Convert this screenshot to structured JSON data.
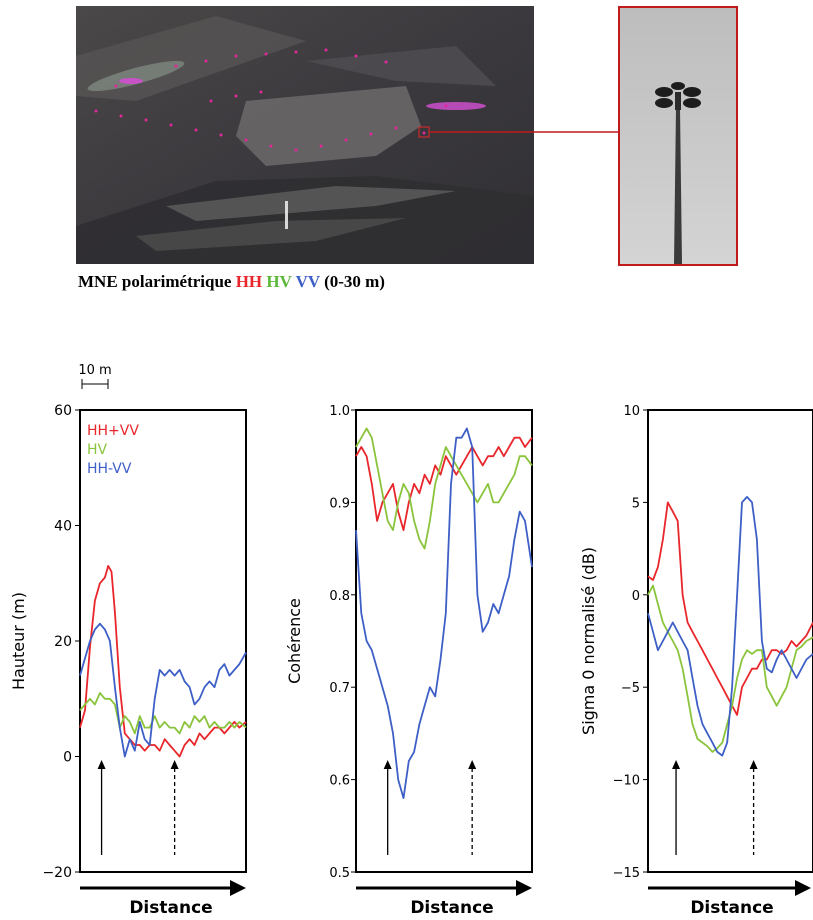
{
  "caption": {
    "prefix": "MNE polarimétrique",
    "hh": "HH",
    "hv": "HV",
    "vv": "VV",
    "suffix": "(0-30 m)"
  },
  "colors": {
    "red": "#e8262b",
    "green": "#8ac43c",
    "blue": "#3e5fc6",
    "marker": "#e0289a"
  },
  "scale_bar": "10 m",
  "xaxis_label": "Distance",
  "chart_data": [
    {
      "type": "line",
      "ylabel": "Hauteur (m)",
      "ylim": [
        -20,
        60
      ],
      "yticks": [
        -20,
        0,
        20,
        40,
        60
      ],
      "ytick_labels": [
        "−20",
        "0",
        "20",
        "40",
        "60"
      ],
      "legend": [
        "HH+VV",
        "HV",
        "HH-VV"
      ],
      "legend_position": "top-left",
      "x_range": [
        0,
        100
      ],
      "arrows": [
        {
          "x": 13,
          "style": "solid"
        },
        {
          "x": 57,
          "style": "dashed"
        }
      ],
      "series": [
        {
          "name": "HH+VV",
          "color": "#e8262b",
          "x": [
            0,
            3,
            6,
            9,
            12,
            15,
            17,
            19,
            21,
            24,
            27,
            30,
            33,
            36,
            39,
            42,
            45,
            48,
            51,
            54,
            57,
            60,
            63,
            66,
            69,
            72,
            75,
            78,
            81,
            84,
            87,
            90,
            93,
            96,
            100
          ],
          "y": [
            5,
            8,
            19,
            27,
            30,
            31,
            33,
            32,
            25,
            12,
            4,
            3,
            2,
            2,
            1,
            2,
            2,
            1,
            3,
            2,
            1,
            0,
            2,
            3,
            2,
            4,
            3,
            4,
            5,
            5,
            4,
            5,
            6,
            5,
            6
          ]
        },
        {
          "name": "HV",
          "color": "#8ac43c",
          "x": [
            0,
            3,
            6,
            9,
            12,
            15,
            18,
            21,
            24,
            27,
            30,
            33,
            36,
            39,
            42,
            45,
            48,
            51,
            54,
            57,
            60,
            63,
            66,
            69,
            72,
            75,
            78,
            81,
            84,
            87,
            90,
            93,
            96,
            100
          ],
          "y": [
            8,
            9,
            10,
            9,
            11,
            10,
            10,
            9,
            5,
            7,
            6,
            4,
            7,
            5,
            5,
            7,
            5,
            6,
            5,
            5,
            4,
            6,
            5,
            7,
            6,
            7,
            5,
            6,
            5,
            5,
            6,
            5,
            6,
            5
          ]
        },
        {
          "name": "HH-VV",
          "color": "#3e5fc6",
          "x": [
            0,
            3,
            6,
            9,
            12,
            15,
            18,
            21,
            24,
            27,
            30,
            33,
            36,
            39,
            42,
            45,
            48,
            51,
            54,
            57,
            60,
            63,
            66,
            69,
            72,
            75,
            78,
            81,
            84,
            87,
            90,
            93,
            96,
            100
          ],
          "y": [
            14,
            17,
            20,
            22,
            23,
            22,
            20,
            12,
            5,
            0,
            3,
            1,
            6,
            3,
            2,
            10,
            15,
            14,
            15,
            14,
            15,
            13,
            12,
            9,
            10,
            12,
            13,
            12,
            15,
            16,
            14,
            15,
            16,
            18
          ]
        }
      ]
    },
    {
      "type": "line",
      "ylabel": "Cohérence",
      "ylim": [
        0.5,
        1.0
      ],
      "yticks": [
        0.5,
        0.6,
        0.7,
        0.8,
        0.9,
        1.0
      ],
      "ytick_labels": [
        "0.5",
        "0.6",
        "0.7",
        "0.8",
        "0.9",
        "1.0"
      ],
      "x_range": [
        0,
        100
      ],
      "arrows": [
        {
          "x": 18,
          "style": "solid"
        },
        {
          "x": 66,
          "style": "dashed"
        }
      ],
      "series": [
        {
          "color": "#e8262b",
          "x": [
            0,
            3,
            6,
            9,
            12,
            15,
            18,
            21,
            24,
            27,
            30,
            33,
            36,
            39,
            42,
            45,
            48,
            51,
            54,
            57,
            60,
            63,
            66,
            69,
            72,
            75,
            78,
            81,
            84,
            87,
            90,
            93,
            96,
            100
          ],
          "y": [
            0.95,
            0.96,
            0.95,
            0.92,
            0.88,
            0.9,
            0.91,
            0.92,
            0.89,
            0.87,
            0.9,
            0.92,
            0.91,
            0.93,
            0.92,
            0.94,
            0.93,
            0.95,
            0.94,
            0.93,
            0.94,
            0.95,
            0.96,
            0.95,
            0.94,
            0.95,
            0.95,
            0.96,
            0.95,
            0.96,
            0.97,
            0.97,
            0.96,
            0.97
          ]
        },
        {
          "color": "#8ac43c",
          "x": [
            0,
            3,
            6,
            9,
            12,
            15,
            18,
            21,
            24,
            27,
            30,
            33,
            36,
            39,
            42,
            45,
            48,
            51,
            54,
            57,
            60,
            63,
            66,
            69,
            72,
            75,
            78,
            81,
            84,
            87,
            90,
            93,
            96,
            100
          ],
          "y": [
            0.96,
            0.97,
            0.98,
            0.97,
            0.94,
            0.91,
            0.88,
            0.87,
            0.9,
            0.92,
            0.91,
            0.88,
            0.86,
            0.85,
            0.88,
            0.92,
            0.94,
            0.96,
            0.95,
            0.94,
            0.93,
            0.92,
            0.91,
            0.9,
            0.91,
            0.92,
            0.9,
            0.9,
            0.91,
            0.92,
            0.93,
            0.95,
            0.95,
            0.94
          ]
        },
        {
          "color": "#3e5fc6",
          "x": [
            0,
            3,
            6,
            9,
            12,
            15,
            18,
            21,
            24,
            27,
            30,
            33,
            36,
            39,
            42,
            45,
            48,
            51,
            54,
            57,
            60,
            63,
            66,
            69,
            72,
            75,
            78,
            81,
            84,
            87,
            90,
            93,
            96,
            100
          ],
          "y": [
            0.87,
            0.78,
            0.75,
            0.74,
            0.72,
            0.7,
            0.68,
            0.65,
            0.6,
            0.58,
            0.62,
            0.63,
            0.66,
            0.68,
            0.7,
            0.69,
            0.73,
            0.78,
            0.92,
            0.97,
            0.97,
            0.98,
            0.96,
            0.8,
            0.76,
            0.77,
            0.79,
            0.78,
            0.8,
            0.82,
            0.86,
            0.89,
            0.88,
            0.83
          ]
        }
      ]
    },
    {
      "type": "line",
      "ylabel": "Sigma 0 normalisé (dB)",
      "ylim": [
        -15,
        10
      ],
      "yticks": [
        -15,
        -10,
        -5,
        0,
        5,
        10
      ],
      "ytick_labels": [
        "−15",
        "−10",
        "−5",
        "0",
        "5",
        "10"
      ],
      "x_range": [
        0,
        100
      ],
      "arrows": [
        {
          "x": 17,
          "style": "solid"
        },
        {
          "x": 64,
          "style": "dashed"
        }
      ],
      "series": [
        {
          "color": "#e8262b",
          "x": [
            0,
            3,
            6,
            9,
            12,
            15,
            18,
            21,
            24,
            27,
            30,
            33,
            36,
            39,
            42,
            45,
            48,
            51,
            54,
            57,
            60,
            63,
            66,
            69,
            72,
            75,
            78,
            81,
            84,
            87,
            90,
            93,
            96,
            100
          ],
          "y": [
            1,
            0.8,
            1.5,
            3,
            5,
            4.5,
            4,
            0,
            -1.5,
            -2,
            -2.5,
            -3,
            -3.5,
            -4,
            -4.5,
            -5,
            -5.5,
            -6,
            -6.5,
            -5,
            -4.5,
            -4,
            -4,
            -3.5,
            -3.5,
            -3,
            -3,
            -3.2,
            -3,
            -2.5,
            -2.8,
            -2.5,
            -2.2,
            -1.5
          ]
        },
        {
          "color": "#8ac43c",
          "x": [
            0,
            3,
            6,
            9,
            12,
            15,
            18,
            21,
            24,
            27,
            30,
            33,
            36,
            39,
            42,
            45,
            48,
            51,
            54,
            57,
            60,
            63,
            66,
            69,
            72,
            75,
            78,
            81,
            84,
            87,
            90,
            93,
            96,
            100
          ],
          "y": [
            0,
            0.5,
            -0.5,
            -1.5,
            -2,
            -2.5,
            -3,
            -4,
            -5.5,
            -7,
            -7.8,
            -8,
            -8.2,
            -8.5,
            -8.3,
            -8,
            -7,
            -6,
            -4.5,
            -3.5,
            -3,
            -3.2,
            -3,
            -3,
            -5,
            -5.5,
            -6,
            -5.5,
            -5,
            -4,
            -3,
            -2.8,
            -2.5,
            -2.3
          ]
        },
        {
          "color": "#3e5fc6",
          "x": [
            0,
            3,
            6,
            9,
            12,
            15,
            18,
            21,
            24,
            27,
            30,
            33,
            36,
            39,
            42,
            45,
            48,
            51,
            54,
            57,
            60,
            63,
            66,
            69,
            72,
            75,
            78,
            81,
            84,
            87,
            90,
            93,
            96,
            100
          ],
          "y": [
            -1,
            -2,
            -3,
            -2.5,
            -2,
            -1.5,
            -2,
            -2.5,
            -3,
            -4.5,
            -6,
            -7,
            -7.5,
            -8,
            -8.5,
            -8.7,
            -8,
            -5,
            0,
            5,
            5.3,
            5,
            3,
            -2.5,
            -4,
            -4.2,
            -3.5,
            -3,
            -3.5,
            -4,
            -4.5,
            -4,
            -3.5,
            -3.2
          ]
        }
      ]
    }
  ]
}
